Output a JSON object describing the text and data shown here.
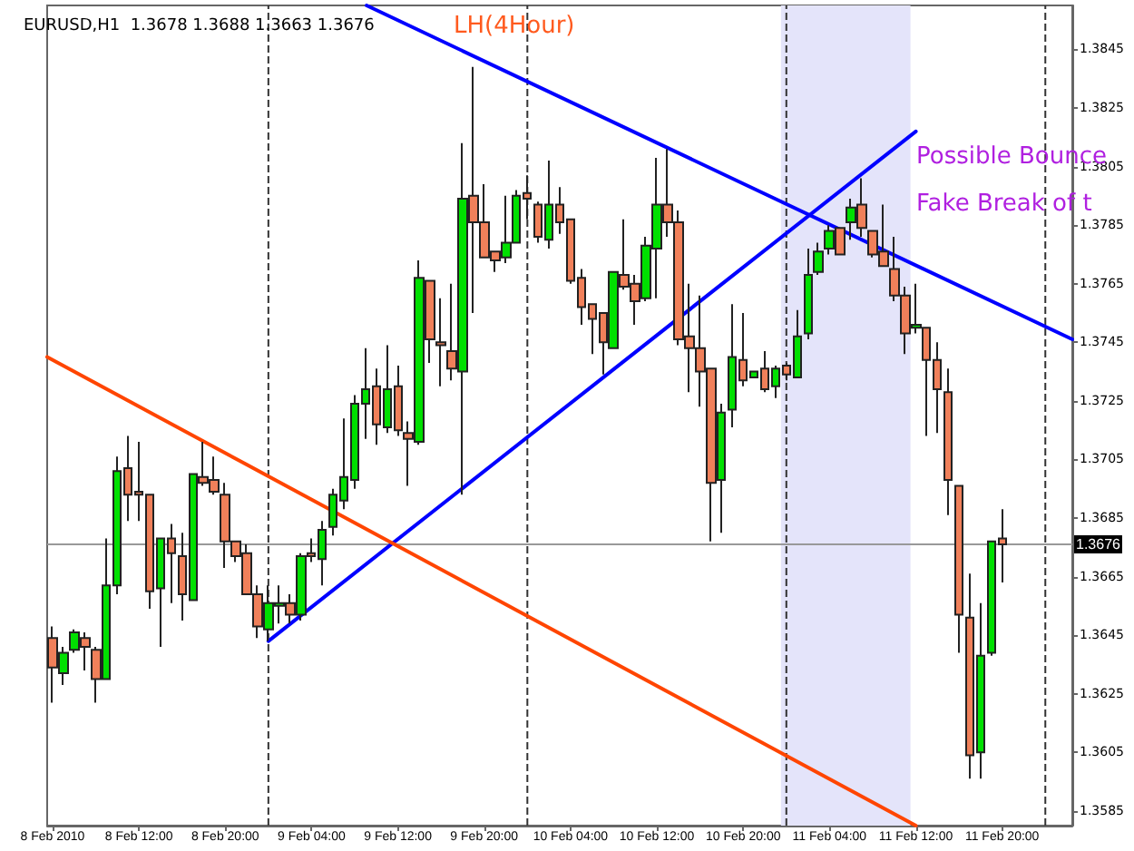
{
  "chart_data": {
    "type": "candlestick",
    "title": "EURUSD,H1  1.3678 1.3688 1.3663 1.3676",
    "x": [
      "2010-02-08T04:00",
      "2010-02-08T05:00",
      "2010-02-08T06:00",
      "2010-02-08T07:00",
      "2010-02-08T08:00",
      "2010-02-08T09:00",
      "2010-02-08T10:00",
      "2010-02-08T11:00",
      "2010-02-08T12:00",
      "2010-02-08T13:00",
      "2010-02-08T14:00",
      "2010-02-08T15:00",
      "2010-02-08T16:00",
      "2010-02-08T17:00",
      "2010-02-08T18:00",
      "2010-02-08T19:00",
      "2010-02-08T20:00",
      "2010-02-08T21:00",
      "2010-02-08T22:00",
      "2010-02-08T23:00",
      "2010-02-09T00:00",
      "2010-02-09T01:00",
      "2010-02-09T02:00",
      "2010-02-09T03:00",
      "2010-02-09T04:00",
      "2010-02-09T05:00",
      "2010-02-09T06:00",
      "2010-02-09T07:00",
      "2010-02-09T08:00",
      "2010-02-09T09:00",
      "2010-02-09T10:00",
      "2010-02-09T11:00",
      "2010-02-09T12:00",
      "2010-02-09T13:00",
      "2010-02-09T14:00",
      "2010-02-09T15:00",
      "2010-02-09T16:00",
      "2010-02-09T17:00",
      "2010-02-09T18:00",
      "2010-02-09T19:00",
      "2010-02-09T20:00",
      "2010-02-09T21:00",
      "2010-02-09T22:00",
      "2010-02-09T23:00",
      "2010-02-10T00:00",
      "2010-02-10T01:00",
      "2010-02-10T02:00",
      "2010-02-10T03:00",
      "2010-02-10T04:00",
      "2010-02-10T05:00",
      "2010-02-10T06:00",
      "2010-02-10T07:00",
      "2010-02-10T08:00",
      "2010-02-10T09:00",
      "2010-02-10T10:00",
      "2010-02-10T11:00",
      "2010-02-10T12:00",
      "2010-02-10T13:00",
      "2010-02-10T14:00",
      "2010-02-10T15:00",
      "2010-02-10T16:00",
      "2010-02-10T17:00",
      "2010-02-10T18:00",
      "2010-02-10T19:00",
      "2010-02-10T20:00",
      "2010-02-10T21:00",
      "2010-02-10T22:00",
      "2010-02-10T23:00",
      "2010-02-11T00:00",
      "2010-02-11T01:00",
      "2010-02-11T02:00",
      "2010-02-11T03:00",
      "2010-02-11T04:00",
      "2010-02-11T05:00",
      "2010-02-11T06:00",
      "2010-02-11T07:00",
      "2010-02-11T08:00",
      "2010-02-11T09:00",
      "2010-02-11T10:00",
      "2010-02-11T11:00",
      "2010-02-11T12:00",
      "2010-02-11T13:00",
      "2010-02-11T14:00",
      "2010-02-11T15:00",
      "2010-02-11T16:00",
      "2010-02-11T17:00",
      "2010-02-11T18:00",
      "2010-02-11T19:00",
      "2010-02-11T20:00"
    ],
    "ohlc": [
      [
        1.3644,
        1.3648,
        1.3622,
        1.3634
      ],
      [
        1.3632,
        1.3641,
        1.3628,
        1.3639
      ],
      [
        1.364,
        1.3647,
        1.3639,
        1.3646
      ],
      [
        1.3644,
        1.3646,
        1.3633,
        1.3641
      ],
      [
        1.364,
        1.3641,
        1.3622,
        1.363
      ],
      [
        1.363,
        1.3678,
        1.363,
        1.3662
      ],
      [
        1.3662,
        1.3706,
        1.3659,
        1.3701
      ],
      [
        1.3702,
        1.3713,
        1.3684,
        1.3693
      ],
      [
        1.3694,
        1.3711,
        1.3684,
        1.3693
      ],
      [
        1.3693,
        1.3693,
        1.3654,
        1.366
      ],
      [
        1.3661,
        1.3678,
        1.3641,
        1.3678
      ],
      [
        1.3678,
        1.3683,
        1.3656,
        1.3673
      ],
      [
        1.3672,
        1.368,
        1.365,
        1.3659
      ],
      [
        1.3657,
        1.37,
        1.3657,
        1.37
      ],
      [
        1.3699,
        1.3711,
        1.3696,
        1.3697
      ],
      [
        1.3698,
        1.3706,
        1.3693,
        1.3694
      ],
      [
        1.3693,
        1.3697,
        1.3668,
        1.3677
      ],
      [
        1.3677,
        1.3677,
        1.367,
        1.3672
      ],
      [
        1.3673,
        1.3676,
        1.3659,
        1.3659
      ],
      [
        1.3659,
        1.3662,
        1.3644,
        1.3648
      ],
      [
        1.3647,
        1.3662,
        1.3643,
        1.3656
      ],
      [
        1.3655,
        1.3662,
        1.3649,
        1.3656
      ],
      [
        1.3656,
        1.3659,
        1.3649,
        1.3652
      ],
      [
        1.3652,
        1.3673,
        1.365,
        1.3672
      ],
      [
        1.3673,
        1.3678,
        1.367,
        1.3672
      ],
      [
        1.3671,
        1.3684,
        1.3662,
        1.3681
      ],
      [
        1.3682,
        1.3695,
        1.3679,
        1.3693
      ],
      [
        1.3691,
        1.3719,
        1.3688,
        1.3699
      ],
      [
        1.3698,
        1.3727,
        1.3695,
        1.3724
      ],
      [
        1.3724,
        1.3743,
        1.3712,
        1.3729
      ],
      [
        1.373,
        1.3736,
        1.371,
        1.3717
      ],
      [
        1.3716,
        1.3744,
        1.3714,
        1.3729
      ],
      [
        1.373,
        1.3737,
        1.3713,
        1.3715
      ],
      [
        1.3714,
        1.3718,
        1.3696,
        1.3712
      ],
      [
        1.3711,
        1.3773,
        1.371,
        1.3767
      ],
      [
        1.3766,
        1.3766,
        1.3738,
        1.3746
      ],
      [
        1.3745,
        1.376,
        1.373,
        1.3744
      ],
      [
        1.3742,
        1.3765,
        1.3732,
        1.3736
      ],
      [
        1.3735,
        1.3813,
        1.3693,
        1.3794
      ],
      [
        1.3795,
        1.3839,
        1.3755,
        1.3786
      ],
      [
        1.3786,
        1.3799,
        1.3774,
        1.3774
      ],
      [
        1.3776,
        1.3776,
        1.3769,
        1.3773
      ],
      [
        1.3774,
        1.3795,
        1.3772,
        1.3779
      ],
      [
        1.3779,
        1.3797,
        1.3779,
        1.3795
      ],
      [
        1.3796,
        1.3802,
        1.3787,
        1.3794
      ],
      [
        1.3792,
        1.3793,
        1.3779,
        1.3781
      ],
      [
        1.378,
        1.3807,
        1.3777,
        1.3792
      ],
      [
        1.3792,
        1.3798,
        1.3782,
        1.3786
      ],
      [
        1.3787,
        1.3787,
        1.3765,
        1.3766
      ],
      [
        1.3767,
        1.377,
        1.3751,
        1.3757
      ],
      [
        1.3758,
        1.3758,
        1.3741,
        1.3753
      ],
      [
        1.3755,
        1.3755,
        1.3734,
        1.3745
      ],
      [
        1.3743,
        1.3769,
        1.3743,
        1.3769
      ],
      [
        1.3768,
        1.3787,
        1.3763,
        1.3764
      ],
      [
        1.3765,
        1.3768,
        1.3751,
        1.3759
      ],
      [
        1.376,
        1.3781,
        1.3759,
        1.3778
      ],
      [
        1.3777,
        1.3808,
        1.376,
        1.3792
      ],
      [
        1.3792,
        1.3811,
        1.3781,
        1.3786
      ],
      [
        1.3786,
        1.379,
        1.3744,
        1.3746
      ],
      [
        1.3747,
        1.3765,
        1.3728,
        1.3743
      ],
      [
        1.3743,
        1.3761,
        1.3723,
        1.3735
      ],
      [
        1.3736,
        1.3736,
        1.3677,
        1.3697
      ],
      [
        1.3698,
        1.3724,
        1.368,
        1.3721
      ],
      [
        1.3722,
        1.3758,
        1.3716,
        1.374
      ],
      [
        1.3739,
        1.3755,
        1.373,
        1.3732
      ],
      [
        1.3733,
        1.3735,
        1.3733,
        1.3735
      ],
      [
        1.3736,
        1.3742,
        1.3728,
        1.3729
      ],
      [
        1.373,
        1.3737,
        1.3726,
        1.3736
      ],
      [
        1.3737,
        1.3738,
        1.3732,
        1.3734
      ],
      [
        1.3733,
        1.3756,
        1.3733,
        1.3747
      ],
      [
        1.3748,
        1.3777,
        1.3746,
        1.3768
      ],
      [
        1.3769,
        1.3779,
        1.3768,
        1.3776
      ],
      [
        1.3777,
        1.3785,
        1.3775,
        1.3783
      ],
      [
        1.3784,
        1.3784,
        1.3775,
        1.3775
      ],
      [
        1.3786,
        1.3794,
        1.378,
        1.3791
      ],
      [
        1.3792,
        1.3801,
        1.3781,
        1.3784
      ],
      [
        1.3783,
        1.3783,
        1.3774,
        1.3775
      ],
      [
        1.3776,
        1.3792,
        1.3771,
        1.3771
      ],
      [
        1.377,
        1.3781,
        1.3759,
        1.3761
      ],
      [
        1.3761,
        1.3764,
        1.3741,
        1.3748
      ],
      [
        1.375,
        1.3765,
        1.3748,
        1.3751
      ],
      [
        1.375,
        1.375,
        1.3713,
        1.3739
      ],
      [
        1.3739,
        1.3745,
        1.3714,
        1.3729
      ],
      [
        1.3728,
        1.3736,
        1.3686,
        1.3698
      ],
      [
        1.3696,
        1.3696,
        1.3639,
        1.3652
      ],
      [
        1.3651,
        1.3666,
        1.3596,
        1.3604
      ],
      [
        1.3605,
        1.3656,
        1.3596,
        1.3638
      ],
      [
        1.3639,
        1.3677,
        1.3638,
        1.3677
      ],
      [
        1.3678,
        1.3688,
        1.3663,
        1.3676
      ]
    ],
    "series": [
      {
        "type": "line",
        "color": "#0000ff",
        "x": [
          "2010-02-09T09:06",
          "2010-02-12T02:30"
        ],
        "values": [
          1.386,
          1.3746
        ]
      },
      {
        "type": "line",
        "color": "#0000ff",
        "x": [
          "2010-02-09T00:00",
          "2010-02-11T12:00"
        ],
        "values": [
          1.3643,
          1.3817
        ]
      },
      {
        "type": "line",
        "color": "#ff4500",
        "x": [
          "2010-02-08T03:30",
          "2010-02-11T12:00"
        ],
        "values": [
          1.374,
          1.358
        ]
      }
    ],
    "marker": "none",
    "xlim": [
      "2010-02-08T03:30",
      "2010-02-12T02:30"
    ],
    "xticks": [
      {
        "value": "2010-02-08T04:00",
        "label": "8 Feb 2010"
      },
      {
        "value": "2010-02-08T12:00",
        "label": "8 Feb 12:00"
      },
      {
        "value": "2010-02-08T20:00",
        "label": "8 Feb 20:00"
      },
      {
        "value": "2010-02-09T04:00",
        "label": "9 Feb 04:00"
      },
      {
        "value": "2010-02-09T12:00",
        "label": "9 Feb 12:00"
      },
      {
        "value": "2010-02-09T20:00",
        "label": "9 Feb 20:00"
      },
      {
        "value": "2010-02-10T04:00",
        "label": "10 Feb 04:00"
      },
      {
        "value": "2010-02-10T12:00",
        "label": "10 Feb 12:00"
      },
      {
        "value": "2010-02-10T20:00",
        "label": "10 Feb 20:00"
      },
      {
        "value": "2010-02-11T04:00",
        "label": "11 Feb 04:00"
      },
      {
        "value": "2010-02-11T12:00",
        "label": "11 Feb 12:00"
      },
      {
        "value": "2010-02-11T20:00",
        "label": "11 Feb 20:00"
      }
    ],
    "ylim": [
      1.358,
      1.386
    ],
    "yticks": [
      1.3585,
      1.3605,
      1.3625,
      1.3645,
      1.3665,
      1.3685,
      1.3705,
      1.3725,
      1.3745,
      1.3765,
      1.3785,
      1.3805,
      1.3825,
      1.3845
    ],
    "ref_lines": [
      {
        "axis": "y",
        "value": 1.3676,
        "label": "1.3676",
        "color": "#999999",
        "line_style": "solid"
      },
      {
        "axis": "x",
        "value": "2010-02-09T00:00",
        "color": "#333333",
        "line_style": "dashed"
      },
      {
        "axis": "x",
        "value": "2010-02-10T00:00",
        "color": "#333333",
        "line_style": "dashed"
      },
      {
        "axis": "x",
        "value": "2010-02-11T00:00",
        "color": "#333333",
        "line_style": "dashed"
      },
      {
        "axis": "x",
        "value": "2010-02-12T00:00",
        "color": "#333333",
        "line_style": "dashed"
      }
    ],
    "bands": [
      {
        "axis": "x",
        "from": "2010-02-10T23:30",
        "to": "2010-02-11T11:30",
        "color": "#e4e4fa"
      }
    ],
    "annotations": [
      "LH(4Hour)",
      "Possible Bounce",
      "Fake Break of t"
    ],
    "grid": false
  }
}
